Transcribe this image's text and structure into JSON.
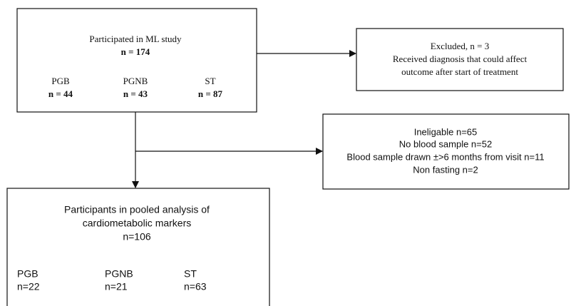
{
  "boxes": {
    "participated": {
      "title": "Participated in ML study",
      "n": "n = 174",
      "groups": [
        {
          "name": "PGB",
          "n": "n = 44"
        },
        {
          "name": "PGNB",
          "n": "n = 43"
        },
        {
          "name": "ST",
          "n": "n = 87"
        }
      ]
    },
    "excluded": {
      "lines": [
        "Excluded, n = 3",
        "Received diagnosis that could affect",
        "outcome after start of treatment"
      ]
    },
    "ineligible": {
      "lines": [
        "Ineligable n=65",
        "No blood sample n=52",
        "Blood sample drawn ±>6 months from visit n=11",
        "Non fasting n=2"
      ]
    },
    "pooled": {
      "title_lines": [
        "Participants in pooled analysis of",
        "cardiometabolic markers",
        "n=106"
      ],
      "groups": [
        {
          "name": "PGB",
          "n": "n=22"
        },
        {
          "name": "PGNB",
          "n": "n=21"
        },
        {
          "name": "ST",
          "n": "n=63"
        }
      ]
    }
  }
}
